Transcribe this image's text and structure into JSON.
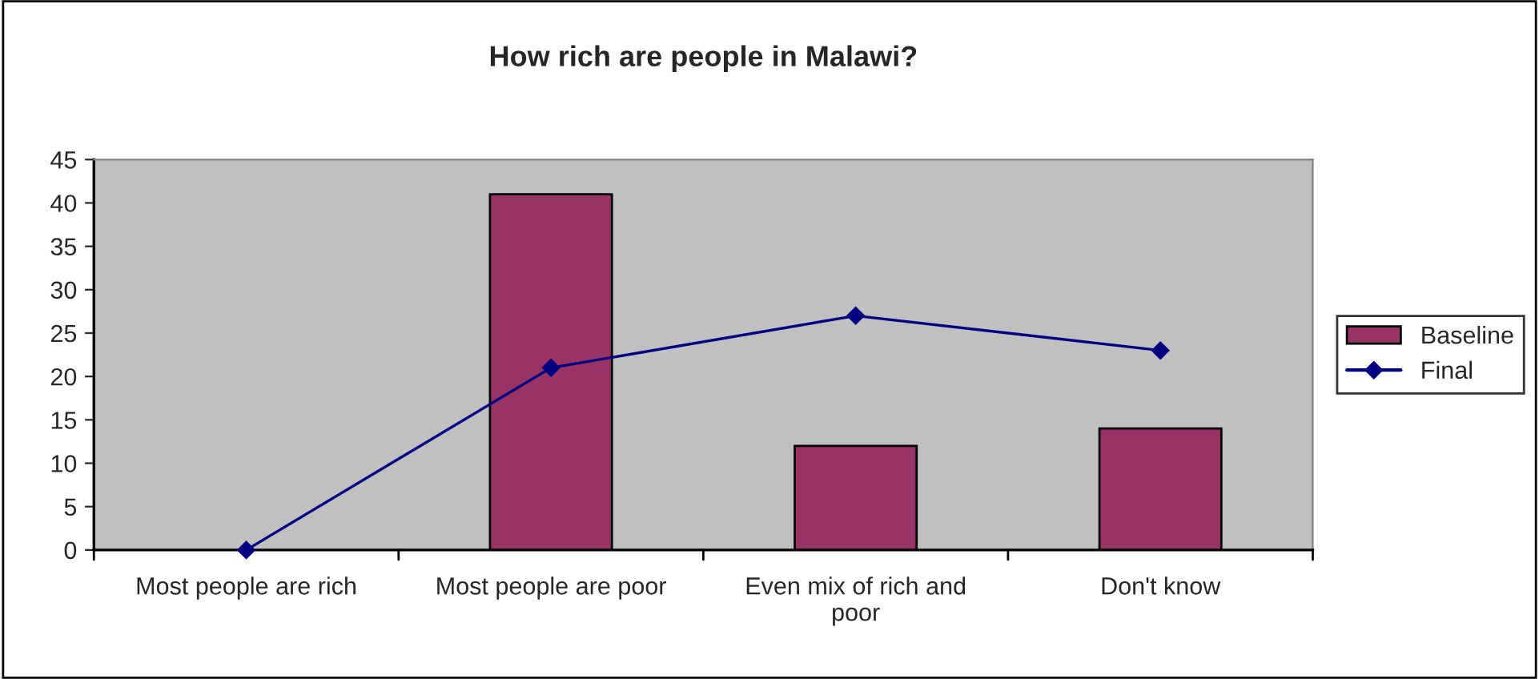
{
  "chart_data": {
    "type": "bar",
    "title": "How rich are people in Malawi?",
    "categories": [
      "Most people are rich",
      "Most people are poor",
      "Even mix of rich and poor",
      "Don't know"
    ],
    "series": [
      {
        "name": "Baseline",
        "color": "#993366",
        "values": [
          null,
          41,
          12,
          14
        ]
      },
      {
        "name": "Final",
        "type": "line",
        "color": "#000080",
        "values": [
          0,
          21,
          27,
          23
        ],
        "marker": "diamond"
      }
    ],
    "ylim": [
      0,
      45
    ],
    "yticks": [
      0,
      5,
      10,
      15,
      20,
      25,
      30,
      35,
      40,
      45
    ],
    "grid": false,
    "legend": "right"
  }
}
